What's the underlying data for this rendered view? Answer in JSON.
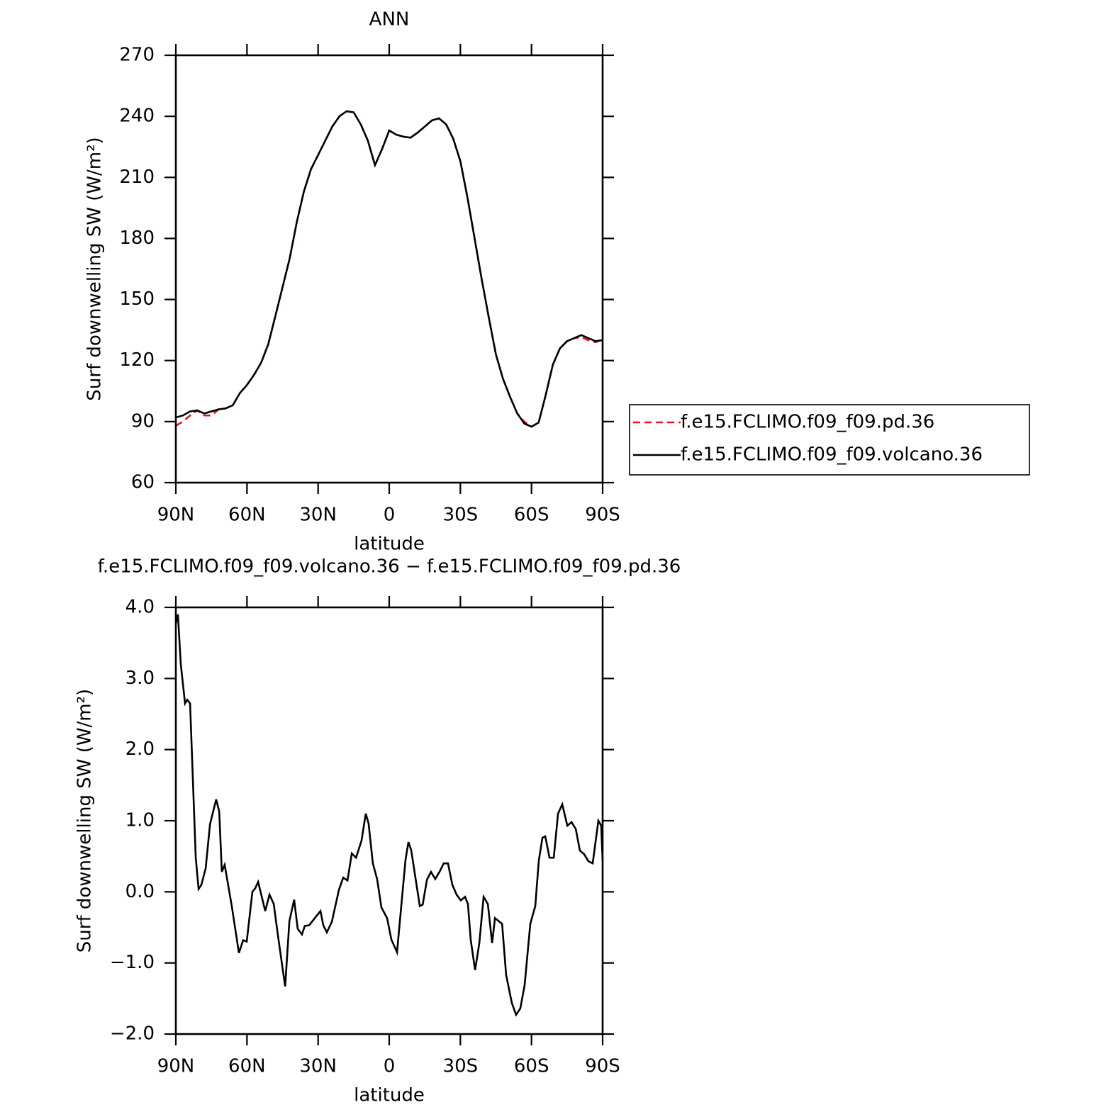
{
  "chart_data": [
    {
      "type": "line",
      "title": "ANN",
      "xlabel": "latitude",
      "ylabel": "Surf downwelling SW (W/m²)",
      "xlim": [
        90,
        -90
      ],
      "xticks": [
        {
          "value": 90,
          "label": "90N"
        },
        {
          "value": 60,
          "label": "60N"
        },
        {
          "value": 30,
          "label": "30N"
        },
        0,
        {
          "value": -30,
          "label": "30S"
        },
        {
          "value": -60,
          "label": "60S"
        },
        {
          "value": -90,
          "label": "90S"
        }
      ],
      "ylim": [
        60,
        270
      ],
      "yticks": [
        60,
        90,
        120,
        150,
        180,
        210,
        240,
        270
      ],
      "legend": "right",
      "x": [
        90,
        87,
        84,
        81,
        78,
        75,
        72,
        69,
        66,
        63,
        60,
        57,
        54,
        51,
        48,
        45,
        42,
        39,
        36,
        33,
        30,
        27,
        24,
        21,
        18,
        15,
        12,
        9,
        6,
        3,
        0,
        -3,
        -6,
        -9,
        -12,
        -15,
        -18,
        -21,
        -24,
        -27,
        -30,
        -33,
        -36,
        -39,
        -42,
        -45,
        -48,
        -51,
        -54,
        -57,
        -60,
        -63,
        -66,
        -69,
        -72,
        -75,
        -78,
        -81,
        -84,
        -87,
        -90
      ],
      "series": [
        {
          "name": "f.e15.FCLIMO.f09_f09.pd.36",
          "color": "#e8141c",
          "linestyle": "dashed",
          "values": [
            88,
            90,
            93,
            95.5,
            93,
            93,
            96,
            96.5,
            98,
            104,
            108,
            113,
            119,
            128,
            142,
            156,
            170,
            188,
            203,
            214,
            221,
            228,
            235,
            240,
            242.5,
            242,
            236,
            228,
            216,
            224,
            233,
            231,
            230,
            229.5,
            232,
            235,
            238,
            239,
            236,
            229,
            218,
            200,
            180,
            160,
            141,
            123,
            111,
            102,
            94,
            90,
            87.5,
            89.5,
            103,
            118,
            126,
            129.5,
            131,
            131.5,
            130,
            129,
            130.5
          ]
        },
        {
          "name": "f.e15.FCLIMO.f09_f09.volcano.36",
          "color": "#000000",
          "linestyle": "solid",
          "values": [
            92,
            93,
            95,
            95.5,
            94,
            95,
            96,
            96.5,
            98,
            104,
            108,
            113,
            119,
            128,
            142,
            156,
            170,
            188,
            203,
            214,
            221,
            228,
            235,
            240,
            242.5,
            242,
            236,
            228,
            216,
            224,
            233,
            231,
            230,
            229.5,
            232,
            235,
            238,
            239,
            236,
            229,
            218,
            200,
            180,
            160,
            141,
            123,
            111,
            102,
            94,
            89,
            87.5,
            89.5,
            103,
            118,
            126,
            129.5,
            131,
            132.5,
            131,
            129.5,
            130
          ]
        }
      ]
    },
    {
      "type": "line",
      "title": "f.e15.FCLIMO.f09_f09.volcano.36 − f.e15.FCLIMO.f09_f09.pd.36",
      "xlabel": "latitude",
      "ylabel": "Surf downwelling SW (W/m²)",
      "xlim": [
        90,
        -90
      ],
      "xticks": [
        {
          "value": 90,
          "label": "90N"
        },
        {
          "value": 60,
          "label": "60N"
        },
        {
          "value": 30,
          "label": "30N"
        },
        0,
        {
          "value": -30,
          "label": "30S"
        },
        {
          "value": -60,
          "label": "60S"
        },
        {
          "value": -90,
          "label": "90S"
        }
      ],
      "ylim": [
        -2,
        4
      ],
      "yticks": [
        {
          "value": -2,
          "label": "−2.0"
        },
        {
          "value": -1,
          "label": "−1.0"
        },
        {
          "value": 0,
          "label": "0.0"
        },
        {
          "value": 1,
          "label": "1.0"
        },
        {
          "value": 2,
          "label": "2.0"
        },
        {
          "value": 3,
          "label": "3.0"
        },
        {
          "value": 4,
          "label": "4.0"
        }
      ],
      "x": [
        90,
        89.1,
        87.9,
        86.1,
        85.2,
        84.0,
        81.6,
        80.4,
        79.2,
        77.4,
        75.6,
        73.0,
        71.7,
        70.6,
        69.4,
        66.4,
        63.4,
        61.6,
        60.1,
        57.7,
        56.5,
        55.3,
        52.3,
        50.5,
        48.7,
        46.9,
        43.9,
        42.1,
        40.1,
        38.6,
        36.8,
        35.6,
        33.8,
        29.0,
        27.8,
        26.3,
        24.2,
        21.2,
        19.4,
        17.6,
        15.8,
        14.0,
        11.7,
        9.9,
        8.7,
        6.9,
        5.1,
        3.3,
        0.9,
        -0.9,
        -3.3,
        -5.7,
        -6.9,
        -8.1,
        -9.3,
        -12.9,
        -14.1,
        -15.9,
        -17.6,
        -19.4,
        -21.2,
        -23.0,
        -24.8,
        -26.6,
        -28.4,
        -30.2,
        -32.0,
        -33.2,
        -34.4,
        -36.2,
        -38.0,
        -39.8,
        -41.6,
        -43.4,
        -44.6,
        -47.6,
        -49.3,
        -51.7,
        -53.5,
        -55.3,
        -57.1,
        -59.5,
        -61.6,
        -63.1,
        -64.6,
        -65.8,
        -67.6,
        -69.4,
        -71.2,
        -73.0,
        -75.1,
        -76.9,
        -78.7,
        -80.4,
        -82.2,
        -84.0,
        -85.8,
        -88.2,
        -89.4,
        -90
      ],
      "series": [
        {
          "color": "#000000",
          "linestyle": "solid",
          "values": [
            3.77,
            3.9,
            3.2,
            2.65,
            2.7,
            2.65,
            0.48,
            0.04,
            0.1,
            0.33,
            0.95,
            1.3,
            1.13,
            0.28,
            0.38,
            -0.2,
            -0.86,
            -0.68,
            -0.7,
            0,
            0.05,
            0.14,
            -0.27,
            -0.04,
            -0.17,
            -0.62,
            -1.33,
            -0.41,
            -0.11,
            -0.52,
            -0.6,
            -0.48,
            -0.47,
            -0.27,
            -0.47,
            -0.57,
            -0.42,
            0.03,
            0.2,
            0.16,
            0.54,
            0.48,
            0.72,
            1.1,
            0.96,
            0.4,
            0.18,
            -0.22,
            -0.37,
            -0.67,
            -0.85,
            0.03,
            0.46,
            0.7,
            0.58,
            -0.2,
            -0.18,
            0.17,
            0.28,
            0.18,
            0.28,
            0.4,
            0.4,
            0.1,
            -0.04,
            -0.12,
            -0.07,
            -0.17,
            -0.68,
            -1.1,
            -0.72,
            -0.07,
            -0.17,
            -0.72,
            -0.37,
            -0.45,
            -1.17,
            -1.56,
            -1.73,
            -1.64,
            -1.31,
            -0.45,
            -0.2,
            0.44,
            0.76,
            0.78,
            0.48,
            0.48,
            1.1,
            1.23,
            0.93,
            0.98,
            0.88,
            0.58,
            0.53,
            0.43,
            0.4,
            1.0,
            0.93,
            0.43
          ]
        }
      ]
    }
  ]
}
